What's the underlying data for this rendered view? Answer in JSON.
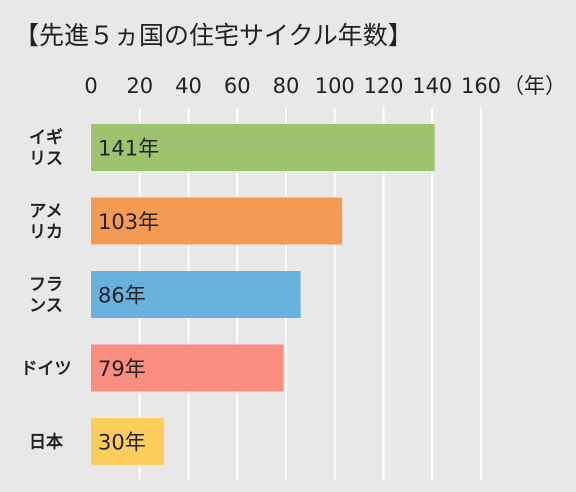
{
  "chart_data": {
    "type": "bar",
    "orientation": "horizontal",
    "title": "【先進５ヵ国の住宅サイクル年数】",
    "xlim": [
      0,
      160
    ],
    "xticks": [
      0,
      20,
      40,
      60,
      80,
      100,
      120,
      140,
      160
    ],
    "xunit": "（年）",
    "grid": true,
    "categories": [
      [
        "イギ",
        "リス"
      ],
      [
        "アメ",
        "リカ"
      ],
      [
        "フラ",
        "ンス"
      ],
      [
        "ドイツ"
      ],
      [
        "日本"
      ]
    ],
    "values": [
      141,
      103,
      86,
      79,
      30
    ],
    "value_labels": [
      "141年",
      "103年",
      "86年",
      "79年",
      "30年"
    ],
    "colors": [
      "#9dc36f",
      "#f49a52",
      "#67b1dd",
      "#f98e80",
      "#fece5c"
    ]
  }
}
